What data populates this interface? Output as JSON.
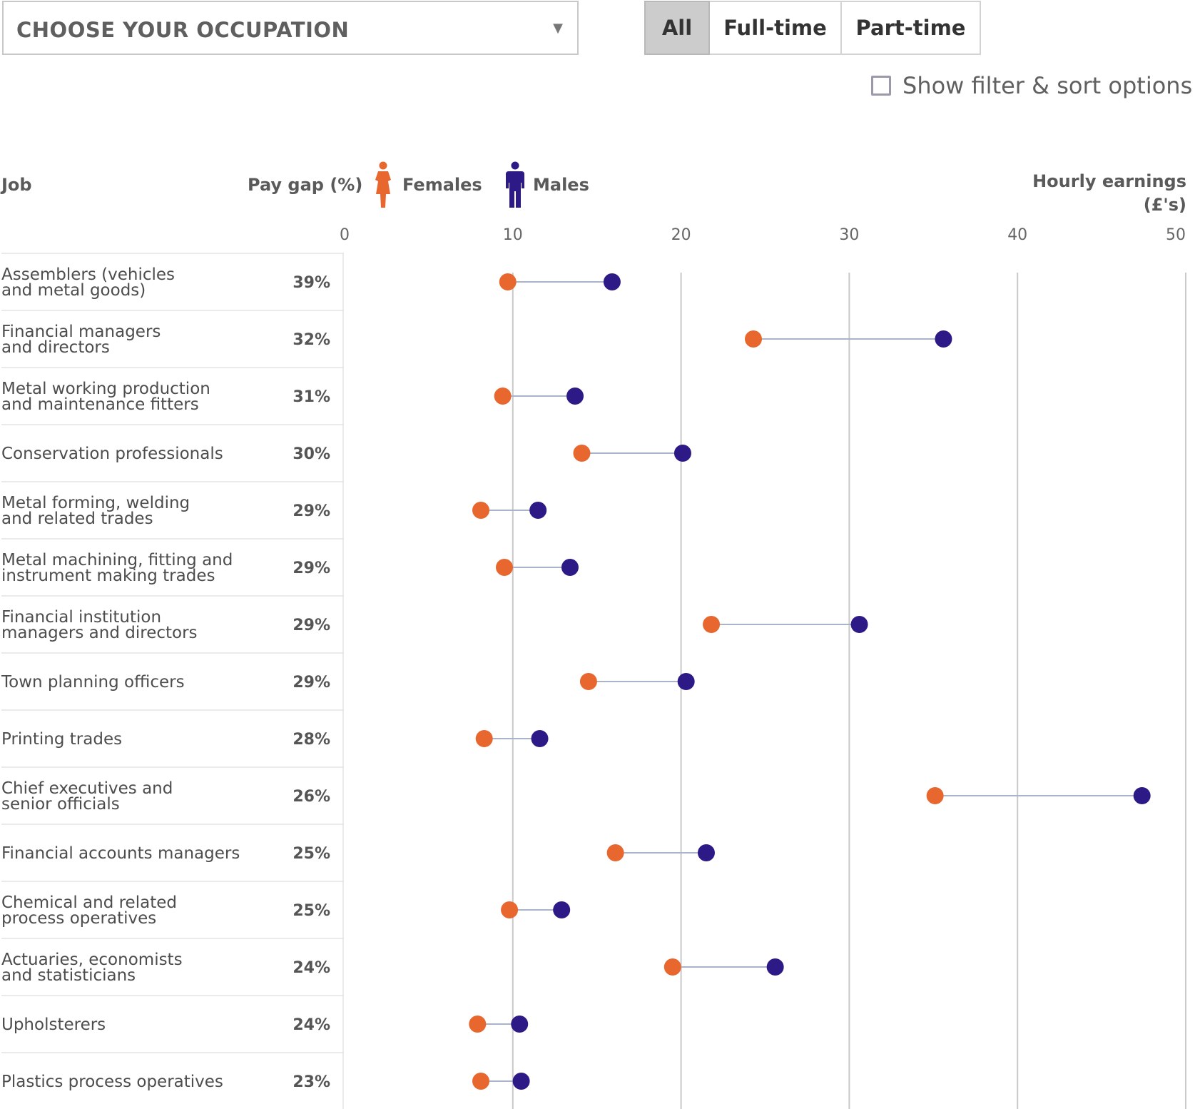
{
  "controls": {
    "occupation_select": "CHOOSE YOUR OCCUPATION",
    "toggle": [
      "All",
      "Full-time",
      "Part-time"
    ],
    "toggle_active": "All",
    "filter_checkbox": {
      "label": "Show filter & sort options",
      "checked": false
    }
  },
  "headers": {
    "job": "Job",
    "pay_gap": "Pay gap (%)",
    "hourly_line1": "Hourly earnings",
    "hourly_line2": "(£'s)"
  },
  "legend": [
    {
      "name": "Females",
      "color": "#e8672e",
      "icon": "female-icon"
    },
    {
      "name": "Males",
      "color": "#2e1a87",
      "icon": "male-icon"
    }
  ],
  "colors": {
    "female": "#e8672e",
    "male": "#2e1a87",
    "connector": "#aab4c8",
    "grid": "#c9c9c9"
  },
  "chart_data": {
    "type": "dumbbell",
    "xlabel": "Hourly earnings (£'s)",
    "xlim": [
      0,
      50
    ],
    "xticks": [
      0,
      10,
      20,
      30,
      40,
      50
    ],
    "grid": "vertical",
    "rows": [
      {
        "job": [
          "Assemblers (vehicles",
          "and metal goods)"
        ],
        "gap": "39%",
        "female": 9.7,
        "male": 15.9
      },
      {
        "job": [
          "Financial managers",
          "and directors"
        ],
        "gap": "32%",
        "female": 24.3,
        "male": 35.6
      },
      {
        "job": [
          "Metal working production",
          "and maintenance fitters"
        ],
        "gap": "31%",
        "female": 9.4,
        "male": 13.7
      },
      {
        "job": [
          "Conservation professionals"
        ],
        "gap": "30%",
        "female": 14.1,
        "male": 20.1
      },
      {
        "job": [
          "Metal forming, welding",
          "and related trades"
        ],
        "gap": "29%",
        "female": 8.1,
        "male": 11.5
      },
      {
        "job": [
          "Metal machining, fitting and",
          "instrument making trades"
        ],
        "gap": "29%",
        "female": 9.5,
        "male": 13.4
      },
      {
        "job": [
          "Financial institution",
          "managers and directors"
        ],
        "gap": "29%",
        "female": 21.8,
        "male": 30.6
      },
      {
        "job": [
          "Town planning officers"
        ],
        "gap": "29%",
        "female": 14.5,
        "male": 20.3
      },
      {
        "job": [
          "Printing trades"
        ],
        "gap": "28%",
        "female": 8.3,
        "male": 11.6
      },
      {
        "job": [
          "Chief executives and",
          "senior officials"
        ],
        "gap": "26%",
        "female": 35.1,
        "male": 47.4
      },
      {
        "job": [
          "Financial accounts managers"
        ],
        "gap": "25%",
        "female": 16.1,
        "male": 21.5
      },
      {
        "job": [
          "Chemical and related",
          "process operatives"
        ],
        "gap": "25%",
        "female": 9.8,
        "male": 12.9
      },
      {
        "job": [
          "Actuaries, economists",
          "and statisticians"
        ],
        "gap": "24%",
        "female": 19.5,
        "male": 25.6
      },
      {
        "job": [
          "Upholsterers"
        ],
        "gap": "24%",
        "female": 7.9,
        "male": 10.4
      },
      {
        "job": [
          "Plastics process operatives"
        ],
        "gap": "23%",
        "female": 8.1,
        "male": 10.5
      }
    ]
  }
}
